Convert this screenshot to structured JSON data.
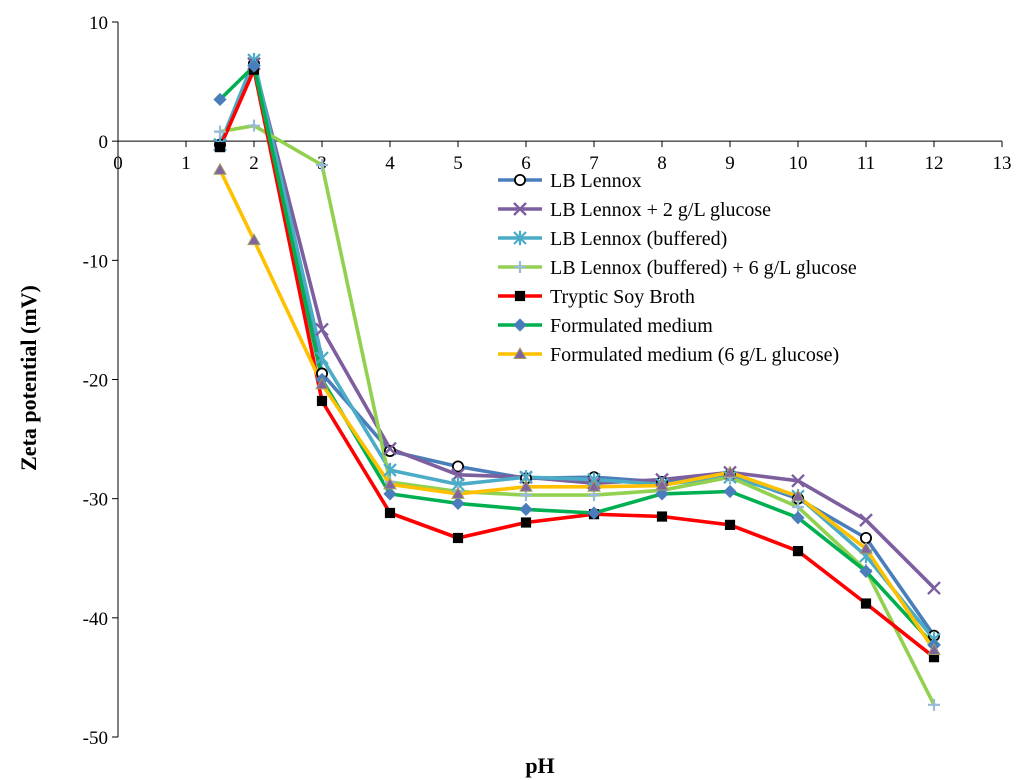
{
  "chart_data": {
    "type": "line",
    "title": "",
    "xlabel": "pH",
    "ylabel": "Zeta potential (mV)",
    "xlim": [
      0,
      13
    ],
    "ylim": [
      -50,
      10
    ],
    "x_ticks": [
      0,
      1,
      2,
      3,
      4,
      5,
      6,
      7,
      8,
      9,
      10,
      11,
      12,
      13
    ],
    "y_ticks": [
      10,
      0,
      -10,
      -20,
      -30,
      -40,
      -50
    ],
    "grid": false,
    "legend_position": "center-right",
    "series": [
      {
        "name": "LB Lennox",
        "color": "#4a7ebb",
        "marker": "circle-open",
        "x": [
          1.5,
          2,
          3,
          4,
          5,
          6,
          7,
          8,
          9,
          10,
          11,
          12
        ],
        "y": [
          -0.3,
          6.5,
          -19.5,
          -26,
          -27.3,
          -28.3,
          -28.2,
          -28.6,
          -28.0,
          -30.0,
          -33.3,
          -41.5
        ]
      },
      {
        "name": "LB Lennox + 2 g/L glucose",
        "color": "#7d5fa0",
        "marker": "x",
        "x": [
          1.5,
          2,
          3,
          4,
          5,
          6,
          7,
          8,
          9,
          10,
          11,
          12
        ],
        "y": [
          -0.3,
          6.5,
          -15.8,
          -25.8,
          -28.0,
          -28.2,
          -28.7,
          -28.4,
          -27.8,
          -28.5,
          -31.8,
          -37.5
        ]
      },
      {
        "name": "LB Lennox (buffered)",
        "color": "#4aacc6",
        "marker": "asterisk",
        "x": [
          1.5,
          2,
          3,
          4,
          5,
          6,
          7,
          8,
          9,
          10,
          11,
          12
        ],
        "y": [
          -0.3,
          6.8,
          -18.2,
          -27.6,
          -28.8,
          -28.2,
          -28.4,
          -28.8,
          -28.2,
          -29.8,
          -34.8,
          -41.8
        ]
      },
      {
        "name": "LB Lennox (buffered) + 6 g/L glucose",
        "color": "#92d050",
        "marker": "plus",
        "x": [
          1.5,
          2,
          3,
          4,
          5,
          6,
          7,
          8,
          9,
          10,
          11,
          12
        ],
        "y": [
          0.8,
          1.3,
          -2.0,
          -28.6,
          -29.4,
          -29.7,
          -29.7,
          -29.3,
          -28.2,
          -30.7,
          -36.0,
          -47.3
        ]
      },
      {
        "name": "Tryptic Soy Broth",
        "color": "#ff0000",
        "marker": "square",
        "x": [
          1.5,
          2,
          3,
          4,
          5,
          6,
          7,
          8,
          9,
          10,
          11,
          12
        ],
        "y": [
          -0.5,
          6.0,
          -21.8,
          -31.2,
          -33.3,
          -32.0,
          -31.3,
          -31.5,
          -32.2,
          -34.4,
          -38.8,
          -43.3
        ]
      },
      {
        "name": "Formulated medium",
        "color": "#00b050",
        "marker": "diamond",
        "x": [
          1.5,
          2,
          3,
          4,
          5,
          6,
          7,
          8,
          9,
          10,
          11,
          12
        ],
        "y": [
          3.5,
          6.3,
          -20.0,
          -29.6,
          -30.4,
          -30.9,
          -31.2,
          -29.6,
          -29.4,
          -31.6,
          -36.1,
          -42.3
        ]
      },
      {
        "name": "Formulated medium (6 g/L glucose)",
        "color": "#ffc000",
        "marker": "triangle",
        "x": [
          1.5,
          2,
          3,
          4,
          5,
          6,
          7,
          8,
          9,
          10,
          11,
          12
        ],
        "y": [
          -2.4,
          -8.3,
          -20.4,
          -28.8,
          -29.6,
          -29.0,
          -29.0,
          -28.9,
          -27.8,
          -29.8,
          -34.2,
          -42.7
        ]
      }
    ]
  }
}
